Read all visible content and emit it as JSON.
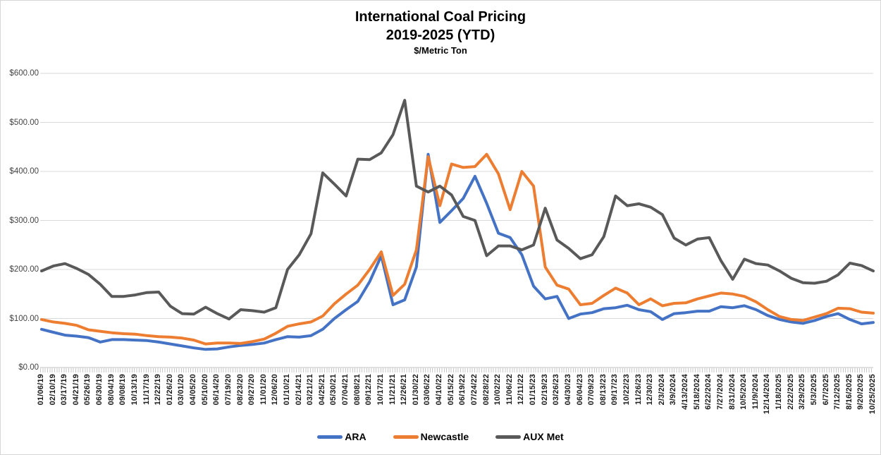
{
  "title": {
    "line1": "International Coal Pricing",
    "line2": "2019-2025 (YTD)",
    "subtitle": "$/Metric Ton"
  },
  "colors": {
    "ara": "#4472C4",
    "newcastle": "#ED7D31",
    "aux_met": "#595959",
    "gridline": "#D9D9D9",
    "axis_line": "#BFBFBF",
    "frame_border": "#D6D6D6"
  },
  "y_axis": {
    "tick_labels": [
      "$600.00",
      "$500.00",
      "$400.00",
      "$300.00",
      "$200.00",
      "$100.00",
      "$0.00"
    ],
    "min": 0,
    "max": 600,
    "step": 100
  },
  "legend": [
    {
      "label": "ARA",
      "color": "#4472C4"
    },
    {
      "label": "Newcastle",
      "color": "#ED7D31"
    },
    {
      "label": "AUX Met",
      "color": "#595959"
    }
  ],
  "chart_data": {
    "type": "line",
    "title": "International Coal Pricing 2019-2025 (YTD)",
    "ylabel": "$/Metric Ton",
    "ylim": [
      0,
      600
    ],
    "grid": true,
    "legend_position": "bottom",
    "x": [
      "01/06/19",
      "02/10/19",
      "03/17/19",
      "04/21/19",
      "05/26/19",
      "06/30/19",
      "08/04/19",
      "09/08/19",
      "10/13/19",
      "11/17/19",
      "12/22/19",
      "01/26/20",
      "03/01/20",
      "04/05/20",
      "05/10/20",
      "06/14/20",
      "07/19/20",
      "08/23/20",
      "09/27/20",
      "11/01/20",
      "12/06/20",
      "01/10/21",
      "02/14/21",
      "03/21/21",
      "04/25/21",
      "05/30/21",
      "07/04/21",
      "08/08/21",
      "09/12/21",
      "10/17/21",
      "11/21/21",
      "12/26/21",
      "01/30/22",
      "03/06/22",
      "04/10/22",
      "05/15/22",
      "06/19/22",
      "07/24/22",
      "08/28/22",
      "10/02/22",
      "11/06/22",
      "12/11/22",
      "01/15/23",
      "02/19/23",
      "03/26/23",
      "04/30/23",
      "06/04/23",
      "07/09/23",
      "08/13/23",
      "09/17/23",
      "10/22/23",
      "11/26/23",
      "12/30/23",
      "2/3/2024",
      "3/9/2024",
      "4/13/2024",
      "5/18/2024",
      "6/22/2024",
      "7/27/2024",
      "8/31/2024",
      "10/5/2024",
      "11/9/2024",
      "12/14/2024",
      "1/18/2025",
      "2/22/2025",
      "3/29/2025",
      "5/3/2025",
      "6/7/2025",
      "7/12/2025",
      "8/16/2025",
      "9/20/2025",
      "10/25/2025"
    ],
    "series": [
      {
        "name": "ARA",
        "color": "#4472C4",
        "values": [
          78,
          72,
          66,
          64,
          61,
          52,
          57,
          57,
          56,
          55,
          52,
          48,
          44,
          40,
          37,
          38,
          42,
          45,
          47,
          50,
          57,
          63,
          62,
          65,
          78,
          100,
          118,
          135,
          175,
          228,
          128,
          138,
          205,
          435,
          296,
          320,
          345,
          390,
          335,
          274,
          265,
          230,
          166,
          140,
          145,
          100,
          109,
          112,
          120,
          122,
          127,
          118,
          114,
          98,
          110,
          112,
          115,
          115,
          124,
          122,
          126,
          118,
          106,
          98,
          93,
          90,
          96,
          104,
          110,
          98,
          89,
          92
        ]
      },
      {
        "name": "Newcastle",
        "color": "#ED7D31",
        "values": [
          98,
          93,
          90,
          86,
          77,
          74,
          71,
          69,
          68,
          65,
          63,
          62,
          60,
          56,
          48,
          50,
          50,
          49,
          53,
          58,
          70,
          84,
          89,
          93,
          105,
          130,
          150,
          168,
          200,
          236,
          147,
          170,
          240,
          430,
          330,
          415,
          408,
          410,
          435,
          395,
          322,
          400,
          370,
          205,
          168,
          160,
          128,
          131,
          147,
          162,
          152,
          128,
          140,
          126,
          131,
          132,
          140,
          146,
          152,
          150,
          145,
          134,
          118,
          104,
          98,
          96,
          103,
          110,
          121,
          120,
          113,
          111
        ]
      },
      {
        "name": "AUX Met",
        "color": "#595959",
        "values": [
          197,
          207,
          212,
          202,
          190,
          170,
          145,
          145,
          148,
          153,
          154,
          125,
          110,
          109,
          123,
          110,
          99,
          118,
          116,
          113,
          122,
          200,
          230,
          273,
          397,
          374,
          350,
          425,
          424,
          438,
          475,
          545,
          370,
          358,
          370,
          352,
          308,
          300,
          228,
          248,
          248,
          240,
          250,
          325,
          260,
          243,
          222,
          230,
          267,
          350,
          330,
          334,
          327,
          312,
          264,
          250,
          262,
          265,
          218,
          180,
          221,
          212,
          209,
          197,
          182,
          173,
          172,
          176,
          189,
          213,
          208,
          197
        ]
      }
    ]
  }
}
